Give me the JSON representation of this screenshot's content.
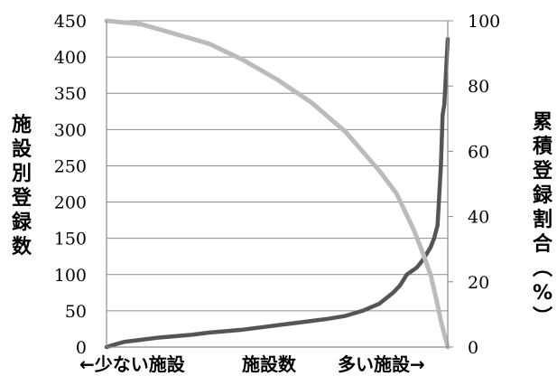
{
  "chart_data": {
    "type": "line",
    "ylabel": "施設別登録数",
    "y2label": "累積登録割合（%）",
    "xaxis": {
      "left_label": "←少ない施設",
      "center_label": "施設数",
      "right_label": "多い施設→"
    },
    "ylim": [
      0,
      450
    ],
    "y2lim": [
      0,
      100
    ],
    "yticks": [
      0,
      50,
      100,
      150,
      200,
      250,
      300,
      350,
      400,
      450
    ],
    "y2ticks": [
      0,
      20,
      40,
      60,
      80,
      100
    ],
    "xlim": [
      0,
      100
    ],
    "grid": true,
    "legend": "none",
    "series": [
      {
        "axis": "left",
        "color": "#555555",
        "points": [
          [
            0,
            0
          ],
          [
            2,
            3
          ],
          [
            5,
            7
          ],
          [
            10,
            10
          ],
          [
            15,
            13
          ],
          [
            20,
            15
          ],
          [
            25,
            17
          ],
          [
            30,
            20
          ],
          [
            35,
            22
          ],
          [
            40,
            24
          ],
          [
            45,
            27
          ],
          [
            50,
            30
          ],
          [
            55,
            33
          ],
          [
            60,
            36
          ],
          [
            65,
            39
          ],
          [
            70,
            43
          ],
          [
            75,
            50
          ],
          [
            80,
            60
          ],
          [
            84,
            75
          ],
          [
            86,
            85
          ],
          [
            88,
            100
          ],
          [
            91,
            110
          ],
          [
            93,
            122
          ],
          [
            95,
            138
          ],
          [
            96,
            150
          ],
          [
            97,
            168
          ],
          [
            97.5,
            210
          ],
          [
            98,
            250
          ],
          [
            98.5,
            320
          ],
          [
            99,
            335
          ],
          [
            99.5,
            380
          ],
          [
            100,
            425
          ]
        ]
      },
      {
        "axis": "right",
        "color": "#bbbbbb",
        "points": [
          [
            0,
            100
          ],
          [
            10,
            99
          ],
          [
            20,
            96
          ],
          [
            30,
            93
          ],
          [
            40,
            88
          ],
          [
            50,
            82
          ],
          [
            60,
            75
          ],
          [
            70,
            66
          ],
          [
            80,
            54
          ],
          [
            85,
            47
          ],
          [
            90,
            36
          ],
          [
            93,
            28
          ],
          [
            95,
            22
          ],
          [
            97,
            13
          ],
          [
            98,
            8
          ],
          [
            99,
            4
          ],
          [
            100,
            0
          ]
        ]
      }
    ]
  }
}
